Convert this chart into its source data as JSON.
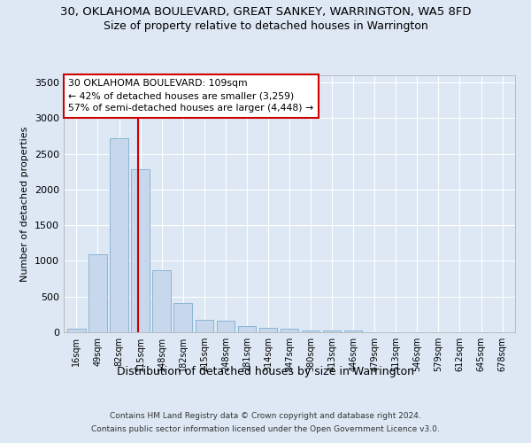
{
  "title1": "30, OKLAHOMA BOULEVARD, GREAT SANKEY, WARRINGTON, WA5 8FD",
  "title2": "Size of property relative to detached houses in Warrington",
  "xlabel": "Distribution of detached houses by size in Warrington",
  "ylabel": "Number of detached properties",
  "footer1": "Contains HM Land Registry data © Crown copyright and database right 2024.",
  "footer2": "Contains public sector information licensed under the Open Government Licence v3.0.",
  "categories": [
    "16sqm",
    "49sqm",
    "82sqm",
    "115sqm",
    "148sqm",
    "182sqm",
    "215sqm",
    "248sqm",
    "281sqm",
    "314sqm",
    "347sqm",
    "380sqm",
    "413sqm",
    "446sqm",
    "479sqm",
    "513sqm",
    "546sqm",
    "579sqm",
    "612sqm",
    "645sqm",
    "678sqm"
  ],
  "values": [
    50,
    1090,
    2720,
    2290,
    870,
    415,
    170,
    165,
    90,
    60,
    50,
    30,
    25,
    20,
    0,
    0,
    0,
    0,
    0,
    0,
    0
  ],
  "bar_color": "#c8d8ec",
  "bar_edge_color": "#8ab4d4",
  "ylim": [
    0,
    3600
  ],
  "yticks": [
    0,
    500,
    1000,
    1500,
    2000,
    2500,
    3000,
    3500
  ],
  "annotation_line1": "30 OKLAHOMA BOULEVARD: 109sqm",
  "annotation_line2": "← 42% of detached houses are smaller (3,259)",
  "annotation_line3": "57% of semi-detached houses are larger (4,448) →",
  "vline_x_index": 2.9,
  "annotation_box_color": "#ffffff",
  "annotation_box_edge_color": "#cc0000",
  "background_color": "#dde8f4",
  "grid_color": "#ffffff",
  "title1_fontsize": 9.5,
  "title2_fontsize": 9,
  "xlabel_fontsize": 9,
  "ylabel_fontsize": 8,
  "footer_fontsize": 6.5
}
